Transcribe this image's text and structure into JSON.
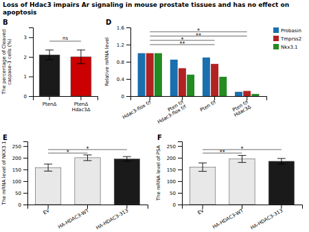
{
  "title": "Loss of Hdac3 impairs Ar signaling in mouse prostate tissues and has no effect on apoptosis",
  "chart_data": [
    {
      "type": "bar",
      "title": "B",
      "categories": [
        "PtenΔ",
        "PtenΔ\nHdac3Δ"
      ],
      "values": [
        2.1,
        2.0
      ],
      "errors": [
        0.25,
        0.35
      ],
      "colors": [
        "#1a1a1a",
        "#cc0000"
      ],
      "ylabel": "The percentage of Cleaved\ncaspase-3 cells (%)",
      "ylim": [
        0,
        3.5
      ],
      "yticks": [
        0,
        1,
        2,
        3
      ],
      "annotations": [
        {
          "text": "ns",
          "y": 2.8,
          "x1": 0,
          "x2": 1
        }
      ]
    },
    {
      "type": "bar",
      "title": "D",
      "categories": [
        "Hdac3-flox f/f",
        "Pten f/f\nHdac3-flox f/f",
        "Pten f/f",
        "Pten f/f\nHdac3Δ"
      ],
      "series": [
        {
          "name": "Probasin",
          "color": "#1a6faf",
          "values": [
            1.0,
            0.85,
            0.9,
            0.1
          ]
        },
        {
          "name": "Tmprss2",
          "color": "#b22222",
          "values": [
            1.0,
            0.65,
            0.75,
            0.12
          ]
        },
        {
          "name": "Nkx3.1",
          "color": "#228b22",
          "values": [
            1.0,
            0.5,
            0.45,
            0.05
          ]
        }
      ],
      "ylabel": "Relative mRNA level",
      "ylim": [
        0,
        1.6
      ],
      "yticks": [
        0,
        0.4,
        0.8,
        1.2,
        1.6
      ],
      "legend": "upper right",
      "annotations": [
        {
          "text": "*",
          "y": 1.5,
          "x1": 0,
          "x2": 3
        },
        {
          "text": "**",
          "y": 1.4,
          "x1": 0,
          "x2": 3
        },
        {
          "text": "*",
          "y": 1.3,
          "x1": 0,
          "x2": 2
        },
        {
          "text": "**",
          "y": 1.2,
          "x1": 0,
          "x2": 2
        }
      ]
    },
    {
      "type": "bar",
      "title": "E",
      "categories": [
        "EV",
        "HA-HDAC3-WT",
        "HA-HDAC3-313"
      ],
      "values": [
        158,
        200,
        195
      ],
      "errors": [
        15,
        12,
        10
      ],
      "colors": [
        "#e8e8e8",
        "#e8e8e8",
        "#1a1a1a"
      ],
      "ylabel": "The mRNA level of NKX3.1",
      "ylim": [
        0,
        270
      ],
      "yticks": [
        0,
        50,
        100,
        150,
        200,
        250
      ],
      "annotations": [
        {
          "text": "*",
          "y": 235,
          "x1": 0,
          "x2": 2
        },
        {
          "text": "*",
          "y": 220,
          "x1": 0,
          "x2": 1
        }
      ]
    },
    {
      "type": "bar",
      "title": "F",
      "categories": [
        "EV",
        "HA-HDAC3-WT",
        "HA-HDAC3-313"
      ],
      "values": [
        160,
        195,
        185
      ],
      "errors": [
        18,
        15,
        12
      ],
      "colors": [
        "#e8e8e8",
        "#e8e8e8",
        "#1a1a1a"
      ],
      "ylabel": "The mRNA level of PSA",
      "ylim": [
        0,
        270
      ],
      "yticks": [
        0,
        50,
        100,
        150,
        200,
        250
      ],
      "annotations": [
        {
          "text": "*",
          "y": 235,
          "x1": 0,
          "x2": 2
        },
        {
          "text": "**",
          "y": 220,
          "x1": 0,
          "x2": 1
        }
      ]
    }
  ]
}
